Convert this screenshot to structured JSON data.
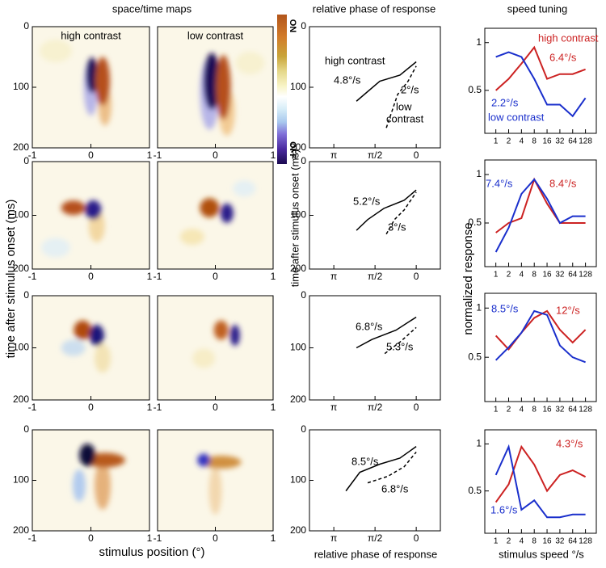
{
  "headings": [
    "space/time maps",
    "relative phase of response",
    "speed tuning"
  ],
  "colorbar": {
    "top": "ON",
    "bottom": "OFF"
  },
  "shared_axes": {
    "maps_y": "time after stimulus onset (ms)",
    "maps_x": "stimulus position (°)",
    "phase_y": "time after stimulus onset (ms)",
    "phase_x": "relative phase of response",
    "tuning_y": "normalized response",
    "tuning_x": "stimulus speed °/s"
  },
  "chart_data": [
    {
      "type": "heatmap",
      "title": "high contrast",
      "xlim": [
        -1,
        1
      ],
      "xticks": [
        -1,
        0,
        1
      ],
      "ylim": [
        200,
        0
      ],
      "yticks": [
        0,
        100,
        200
      ]
    },
    {
      "type": "heatmap",
      "title": "low contrast",
      "xlim": [
        -1,
        1
      ],
      "xticks": [
        -1,
        0,
        1
      ],
      "ylim": [
        200,
        0
      ]
    },
    {
      "type": "line",
      "xlim": [
        4.07,
        -0.92
      ],
      "xticks": [
        {
          "value": 3.1416,
          "label": "π"
        },
        {
          "value": 1.5708,
          "label": "π/2"
        },
        0
      ],
      "ylim": [
        200,
        0
      ],
      "yticks": [
        0,
        100,
        200
      ],
      "series": [
        {
          "style": "solid",
          "x": [
            2.28,
            1.39,
            0.62,
            0
          ],
          "values": [
            123,
            90,
            80,
            58
          ]
        },
        {
          "style": "dashed",
          "x": [
            1.14,
            0.71,
            0.31,
            0
          ],
          "values": [
            167,
            112,
            90,
            65
          ]
        }
      ],
      "annotations": [
        {
          "text": "high contrast"
        },
        {
          "text": "4.8°/s"
        },
        {
          "text": "2°/s"
        },
        {
          "text": "low"
        },
        {
          "text": "contrast"
        }
      ]
    },
    {
      "type": "tuning",
      "log_x": true,
      "xlim": [
        0.55,
        230
      ],
      "xticks": [
        1,
        2,
        4,
        8,
        16,
        32,
        64,
        128
      ],
      "ylim": [
        0.05,
        1.15
      ],
      "yticks": [
        0.5,
        1
      ],
      "series": [
        {
          "color": "#cc2222",
          "x": [
            1,
            2,
            4,
            8,
            16,
            32,
            64,
            128
          ],
          "values": [
            0.5,
            0.62,
            0.78,
            0.95,
            0.62,
            0.67,
            0.67,
            0.72
          ]
        },
        {
          "color": "#1a2fcc",
          "x": [
            1,
            2,
            4,
            8,
            16,
            32,
            64,
            128
          ],
          "values": [
            0.85,
            0.9,
            0.85,
            0.62,
            0.35,
            0.35,
            0.23,
            0.42
          ]
        }
      ],
      "annotations": [
        {
          "text": "high contrast",
          "color": "#cc2222"
        },
        {
          "text": "6.4°/s",
          "color": "#cc2222"
        },
        {
          "text": "2.2°/s",
          "color": "#1a2fcc"
        },
        {
          "text": "low contrast",
          "color": "#1a2fcc"
        }
      ]
    },
    {
      "type": "heatmap",
      "xlim": [
        -1,
        1
      ],
      "xticks": [
        -1,
        0,
        1
      ],
      "ylim": [
        200,
        0
      ],
      "yticks": [
        0,
        100,
        200
      ]
    },
    {
      "type": "heatmap",
      "xlim": [
        -1,
        1
      ],
      "xticks": [
        -1,
        0,
        1
      ],
      "ylim": [
        200,
        0
      ]
    },
    {
      "type": "line",
      "xlim": [
        4.07,
        -0.92
      ],
      "xticks": [
        {
          "value": 3.1416,
          "label": "π"
        },
        {
          "value": 1.5708,
          "label": "π/2"
        },
        0
      ],
      "ylim": [
        200,
        0
      ],
      "yticks": [
        0,
        100,
        200
      ],
      "series": [
        {
          "style": "solid",
          "x": [
            2.28,
            1.85,
            1.23,
            0.46,
            0
          ],
          "values": [
            128,
            108,
            87,
            72,
            53
          ]
        },
        {
          "style": "dashed",
          "x": [
            1.14,
            0.83,
            0.46,
            0
          ],
          "values": [
            135,
            108,
            90,
            57
          ]
        }
      ],
      "annotations": [
        {
          "text": "5.2°/s"
        },
        {
          "text": "3°/s"
        }
      ]
    },
    {
      "type": "tuning",
      "log_x": true,
      "xlim": [
        0.55,
        230
      ],
      "xticks": [
        1,
        2,
        4,
        8,
        16,
        32,
        64,
        128
      ],
      "ylim": [
        0.05,
        1.15
      ],
      "yticks": [
        0.5,
        1
      ],
      "series": [
        {
          "color": "#cc2222",
          "x": [
            1,
            2,
            4,
            8,
            16,
            32,
            64,
            128
          ],
          "values": [
            0.4,
            0.5,
            0.55,
            0.95,
            0.7,
            0.5,
            0.5,
            0.5
          ]
        },
        {
          "color": "#1a2fcc",
          "x": [
            1,
            2,
            4,
            8,
            16,
            32,
            64,
            128
          ],
          "values": [
            0.2,
            0.45,
            0.8,
            0.95,
            0.75,
            0.5,
            0.57,
            0.57
          ]
        }
      ],
      "annotations": [
        {
          "text": "7.4°/s",
          "color": "#1a2fcc"
        },
        {
          "text": "8.4°/s",
          "color": "#cc2222"
        }
      ]
    },
    {
      "type": "heatmap",
      "xlim": [
        -1,
        1
      ],
      "xticks": [
        -1,
        0,
        1
      ],
      "ylim": [
        200,
        0
      ],
      "yticks": [
        0,
        100,
        200
      ]
    },
    {
      "type": "heatmap",
      "xlim": [
        -1,
        1
      ],
      "xticks": [
        -1,
        0,
        1
      ],
      "ylim": [
        200,
        0
      ]
    },
    {
      "type": "line",
      "xlim": [
        4.07,
        -0.92
      ],
      "xticks": [
        {
          "value": 3.1416,
          "label": "π"
        },
        {
          "value": 1.5708,
          "label": "π/2"
        },
        0
      ],
      "ylim": [
        200,
        0
      ],
      "yticks": [
        0,
        100,
        200
      ],
      "series": [
        {
          "style": "solid",
          "x": [
            2.28,
            1.69,
            0.77,
            0
          ],
          "values": [
            100,
            84,
            66,
            41
          ]
        },
        {
          "style": "dashed",
          "x": [
            1.2,
            0.62,
            0
          ],
          "values": [
            111,
            89,
            61
          ]
        }
      ],
      "annotations": [
        {
          "text": "6.8°/s"
        },
        {
          "text": "5.3°/s"
        }
      ]
    },
    {
      "type": "tuning",
      "log_x": true,
      "xlim": [
        0.55,
        230
      ],
      "xticks": [
        1,
        2,
        4,
        8,
        16,
        32,
        64,
        128
      ],
      "ylim": [
        0.05,
        1.15
      ],
      "yticks": [
        0.5,
        1
      ],
      "series": [
        {
          "color": "#cc2222",
          "x": [
            1,
            2,
            4,
            8,
            16,
            32,
            64,
            128
          ],
          "values": [
            0.72,
            0.58,
            0.75,
            0.9,
            0.97,
            0.78,
            0.65,
            0.78
          ]
        },
        {
          "color": "#1a2fcc",
          "x": [
            1,
            2,
            4,
            8,
            16,
            32,
            64,
            128
          ],
          "values": [
            0.47,
            0.6,
            0.75,
            0.97,
            0.93,
            0.62,
            0.5,
            0.45
          ]
        }
      ],
      "annotations": [
        {
          "text": "8.5°/s",
          "color": "#1a2fcc"
        },
        {
          "text": "12°/s",
          "color": "#cc2222"
        }
      ]
    },
    {
      "type": "heatmap",
      "xlim": [
        -1,
        1
      ],
      "xticks": [
        -1,
        0,
        1
      ],
      "ylim": [
        200,
        0
      ],
      "yticks": [
        0,
        100,
        200
      ]
    },
    {
      "type": "heatmap",
      "xlim": [
        -1,
        1
      ],
      "xticks": [
        -1,
        0,
        1
      ],
      "ylim": [
        200,
        0
      ]
    },
    {
      "type": "line",
      "xlim": [
        4.07,
        -0.92
      ],
      "xticks": [
        {
          "value": 3.1416,
          "label": "π"
        },
        {
          "value": 1.5708,
          "label": "π/2"
        },
        0
      ],
      "ylim": [
        200,
        0
      ],
      "yticks": [
        0,
        100,
        200
      ],
      "series": [
        {
          "style": "solid",
          "x": [
            2.68,
            2.15,
            1.39,
            0.62,
            0
          ],
          "values": [
            121,
            84,
            68,
            56,
            33
          ]
        },
        {
          "style": "dashed",
          "x": [
            1.85,
            1.08,
            0.46,
            0
          ],
          "values": [
            105,
            92,
            73,
            44
          ]
        }
      ],
      "annotations": [
        {
          "text": "8.5°/s"
        },
        {
          "text": "6.8°/s"
        }
      ]
    },
    {
      "type": "tuning",
      "log_x": true,
      "xlim": [
        0.55,
        230
      ],
      "xticks": [
        1,
        2,
        4,
        8,
        16,
        32,
        64,
        128
      ],
      "ylim": [
        0.05,
        1.15
      ],
      "yticks": [
        0.5,
        1
      ],
      "series": [
        {
          "color": "#cc2222",
          "x": [
            1,
            2,
            4,
            8,
            16,
            32,
            64,
            128
          ],
          "values": [
            0.38,
            0.57,
            0.97,
            0.78,
            0.5,
            0.67,
            0.72,
            0.65
          ]
        },
        {
          "color": "#1a2fcc",
          "x": [
            1,
            2,
            4,
            8,
            16,
            32,
            64,
            128
          ],
          "values": [
            0.67,
            0.97,
            0.3,
            0.4,
            0.22,
            0.22,
            0.25,
            0.25
          ]
        }
      ],
      "annotations": [
        {
          "text": "4.3°/s",
          "color": "#cc2222"
        },
        {
          "text": "1.6°/s",
          "color": "#1a2fcc"
        }
      ]
    }
  ]
}
